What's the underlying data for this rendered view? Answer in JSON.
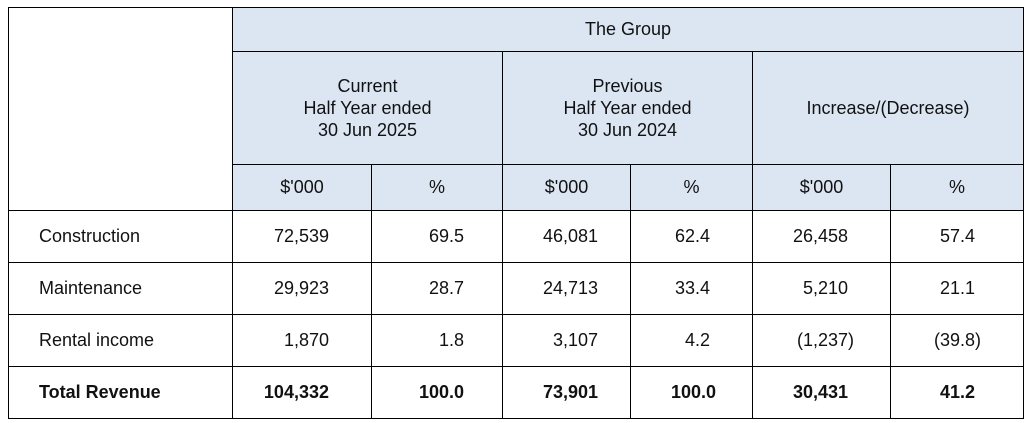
{
  "group_header": "The Group",
  "periods": [
    {
      "lines": [
        "Current",
        "Half Year ended",
        "30 Jun 2025"
      ]
    },
    {
      "lines": [
        "Previous",
        "Half Year ended",
        "30 Jun 2024"
      ]
    },
    {
      "lines": [
        "Increase/(Decrease)"
      ]
    }
  ],
  "units": [
    "$'000",
    "%",
    "$'000",
    "%",
    "$'000",
    "%"
  ],
  "rows": [
    {
      "label": "Construction",
      "values": [
        "72,539",
        "69.5",
        "46,081",
        "62.4",
        "26,458",
        "57.4"
      ]
    },
    {
      "label": "Maintenance",
      "values": [
        "29,923",
        "28.7",
        "24,713",
        "33.4",
        "5,210",
        "21.1"
      ]
    },
    {
      "label": "Rental income",
      "values": [
        "1,870",
        "1.8",
        "3,107",
        "4.2",
        "(1,237)",
        "(39.8)"
      ]
    },
    {
      "label": "Total Revenue",
      "values": [
        "104,332",
        "100.0",
        "73,901",
        "100.0",
        "30,431",
        "41.2"
      ]
    }
  ],
  "colors": {
    "header_bg": "#dce6f2",
    "border": "#000000"
  }
}
